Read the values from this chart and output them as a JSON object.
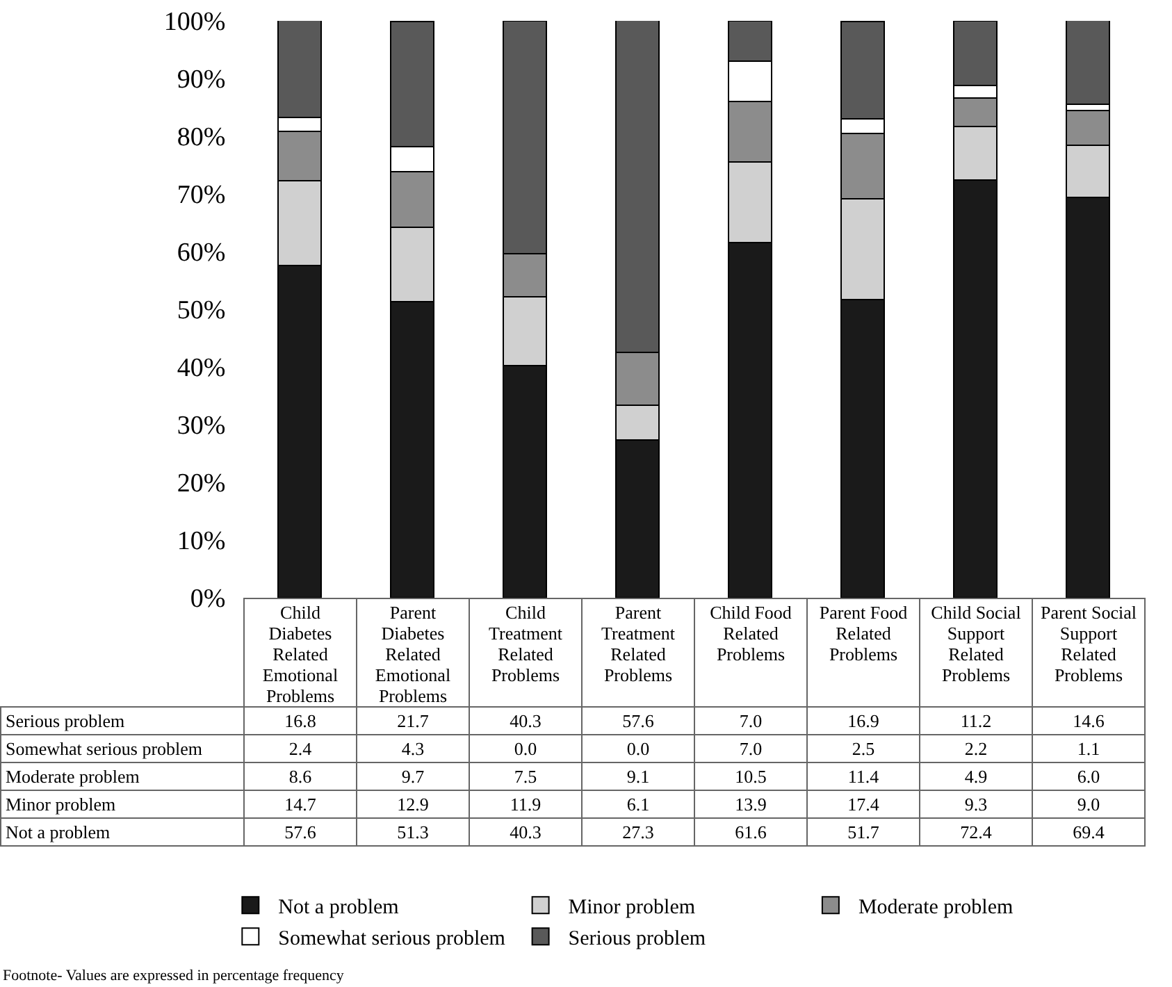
{
  "chart_data": {
    "type": "bar",
    "stacked": true,
    "categories": [
      "Child Diabetes Related Emotional Problems",
      "Parent Diabetes Related Emotional Problems",
      "Child Treatment Related Problems",
      "Parent Treatment Related Problems",
      "Child Food Related Problems",
      "Parent Food Related Problems",
      "Child Social Support Related Problems",
      "Parent Social Support Related Problems"
    ],
    "series": [
      {
        "name": "Not a problem",
        "color": "#1a1a1a",
        "values": [
          57.6,
          51.3,
          40.3,
          27.3,
          61.6,
          51.7,
          72.4,
          69.4
        ],
        "value_labels": [
          "57.6",
          "51.3",
          "40.3",
          "27.3",
          "61.6",
          "51.7",
          "72.4",
          "69.4"
        ]
      },
      {
        "name": "Minor problem",
        "color": "#d0d0d0",
        "values": [
          14.7,
          12.9,
          11.9,
          6.1,
          13.9,
          17.4,
          9.3,
          9.0
        ],
        "value_labels": [
          "14.7",
          "12.9",
          "11.9",
          "6.1",
          "13.9",
          "17.4",
          "9.3",
          "9.0"
        ]
      },
      {
        "name": "Moderate problem",
        "color": "#8c8c8c",
        "values": [
          8.6,
          9.7,
          7.5,
          9.1,
          10.5,
          11.4,
          4.9,
          6.0
        ],
        "value_labels": [
          "8.6",
          "9.7",
          "7.5",
          "9.1",
          "10.5",
          "11.4",
          "4.9",
          "6.0"
        ]
      },
      {
        "name": "Somewhat serious problem",
        "color": "#ffffff",
        "values": [
          2.4,
          4.3,
          0.0,
          0.0,
          7.0,
          2.5,
          2.2,
          1.1
        ],
        "value_labels": [
          "2.4",
          "4.3",
          "0.0",
          "0.0",
          "7.0",
          "2.5",
          "2.2",
          "1.1"
        ]
      },
      {
        "name": "Serious problem",
        "color": "#595959",
        "values": [
          16.8,
          21.7,
          40.3,
          57.6,
          7.0,
          16.9,
          11.2,
          14.6
        ],
        "value_labels": [
          "16.8",
          "21.7",
          "40.3",
          "57.6",
          "7.0",
          "16.9",
          "11.2",
          "14.6"
        ]
      }
    ],
    "ylim": [
      0,
      100
    ],
    "yticks": [
      {
        "value": 0,
        "label": "0%"
      },
      {
        "value": 10,
        "label": "10%"
      },
      {
        "value": 20,
        "label": "20%"
      },
      {
        "value": 30,
        "label": "30%"
      },
      {
        "value": 40,
        "label": "40%"
      },
      {
        "value": 50,
        "label": "50%"
      },
      {
        "value": 60,
        "label": "60%"
      },
      {
        "value": 70,
        "label": "70%"
      },
      {
        "value": 80,
        "label": "80%"
      },
      {
        "value": 90,
        "label": "90%"
      },
      {
        "value": 100,
        "label": "100%"
      }
    ],
    "grid": false,
    "legend": "bottom",
    "annotations": [
      "Footnote- Values are expressed in percentage frequency"
    ]
  }
}
